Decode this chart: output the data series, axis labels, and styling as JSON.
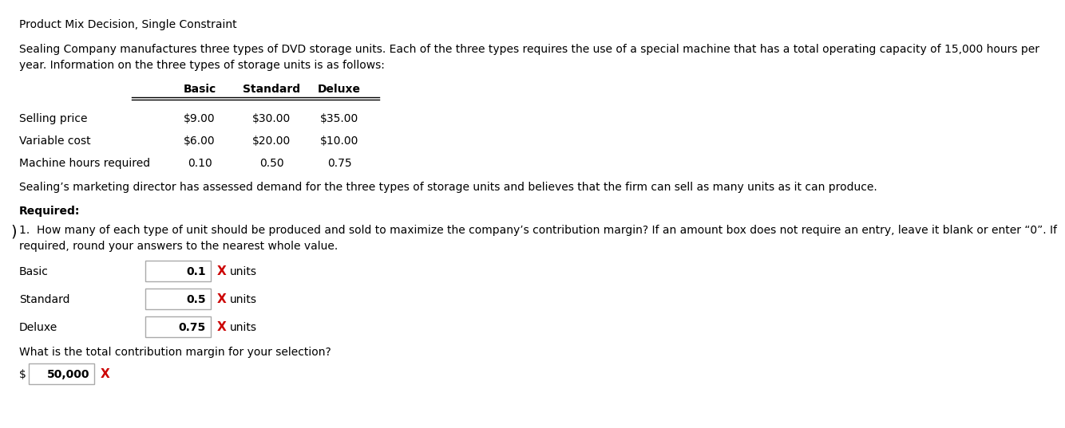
{
  "title": "Product Mix Decision, Single Constraint",
  "intro_line1": "Sealing Company manufactures three types of DVD storage units. Each of the three types requires the use of a special machine that has a total operating capacity of 15,000 hours per",
  "intro_line2": "year. Information on the three types of storage units is as follows:",
  "col_headers": [
    "Basic",
    "Standard",
    "Deluxe"
  ],
  "row_labels": [
    "Selling price",
    "Variable cost",
    "Machine hours required"
  ],
  "row_data": [
    [
      "$9.00",
      "$30.00",
      "$35.00"
    ],
    [
      "$6.00",
      "$20.00",
      "$10.00"
    ],
    [
      "0.10",
      "0.50",
      "0.75"
    ]
  ],
  "marketing_text": "Sealing’s marketing director has assessed demand for the three types of storage units and believes that the firm can sell as many units as it can produce.",
  "required_label": "Required:",
  "question_line1": "1.  How many of each type of unit should be produced and sold to maximize the company’s contribution margin? If an amount box does not require an entry, leave it blank or enter “0”. If",
  "question_line2": "required, round your answers to the nearest whole value.",
  "input_labels": [
    "Basic",
    "Standard",
    "Deluxe"
  ],
  "input_values": [
    "0.1",
    "0.5",
    "0.75"
  ],
  "total_question": "What is the total contribution margin for your selection?",
  "total_value": "50,000",
  "bg_color": "#ffffff",
  "text_color": "#000000",
  "red_color": "#cc0000",
  "line_color": "#000000",
  "box_edge_color": "#aaaaaa"
}
